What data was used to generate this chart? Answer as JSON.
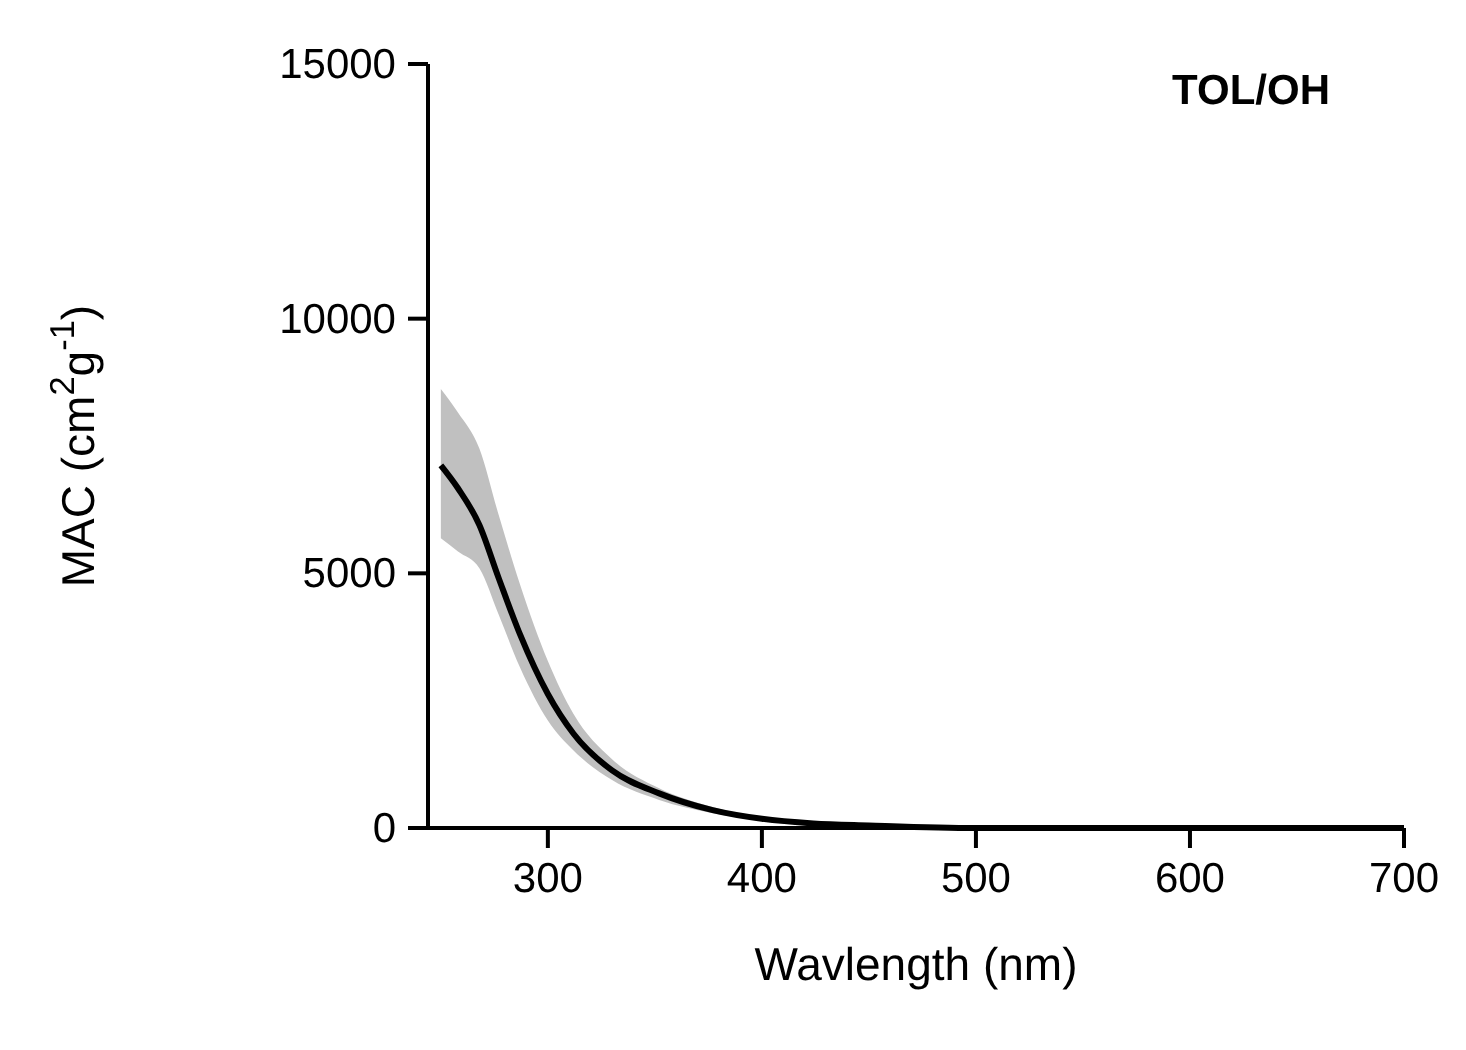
{
  "chart_data": {
    "type": "line",
    "xlabel": "Wavlength (nm)",
    "ylabel": "MAC (cm$^{2}$g$^{-1}$)",
    "annotations": [
      "TOL/OH"
    ],
    "xlim": [
      244,
      700
    ],
    "xticks": [
      300,
      400,
      500,
      600,
      700
    ],
    "ylim": [
      0,
      15000
    ],
    "yticks": [
      0,
      5000,
      10000,
      15000
    ],
    "marker": "none",
    "line_style": "solid",
    "series": [
      {
        "color": "#000000",
        "x": [
          250,
          258,
          268,
          277,
          287,
          300,
          312,
          330,
          352,
          377,
          400,
          424,
          450,
          500,
          600,
          700
        ],
        "values": [
          7120,
          6670,
          5950,
          4910,
          3800,
          2630,
          1850,
          1130,
          680,
          350,
          180,
          90,
          50,
          0,
          0,
          0
        ],
        "lower": [
          5690,
          5430,
          5100,
          4190,
          3150,
          2110,
          1520,
          940,
          550,
          290,
          150,
          70,
          0,
          0,
          0,
          0
        ],
        "upper": [
          8620,
          8160,
          7450,
          6150,
          4780,
          3280,
          2240,
          1350,
          780,
          410,
          210,
          110,
          100,
          0,
          0,
          0
        ]
      }
    ]
  }
}
